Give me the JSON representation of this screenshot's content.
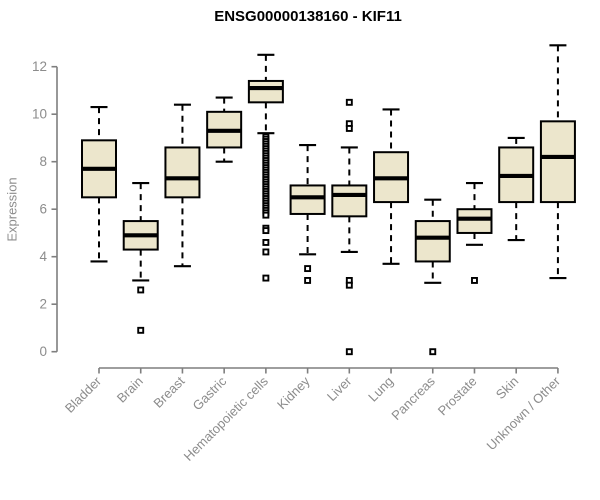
{
  "title": "ENSG00000138160 - KIF11",
  "chart_data": {
    "type": "boxplot",
    "title": "ENSG00000138160 - KIF11",
    "xlabel": "",
    "ylabel": "Expression",
    "ylim": [
      0,
      13
    ],
    "yticks": [
      0,
      2,
      4,
      6,
      8,
      10,
      12
    ],
    "grid": false,
    "legend": "none",
    "categories": [
      "Bladder",
      "Brain",
      "Breast",
      "Gastric",
      "Hematopoietic cells",
      "Kidney",
      "Liver",
      "Lung",
      "Pancreas",
      "Prostate",
      "Skin",
      "Unknown / Other"
    ],
    "series": [
      {
        "name": "Bladder",
        "whisker_low": 3.8,
        "q1": 6.5,
        "median": 7.7,
        "q3": 8.9,
        "whisker_high": 10.3,
        "outliers": []
      },
      {
        "name": "Brain",
        "whisker_low": 3.0,
        "q1": 4.3,
        "median": 4.9,
        "q3": 5.5,
        "whisker_high": 7.1,
        "outliers": [
          2.6,
          0.9
        ]
      },
      {
        "name": "Breast",
        "whisker_low": 3.6,
        "q1": 6.5,
        "median": 7.3,
        "q3": 8.6,
        "whisker_high": 10.4,
        "outliers": []
      },
      {
        "name": "Gastric",
        "whisker_low": 8.0,
        "q1": 8.6,
        "median": 9.3,
        "q3": 10.1,
        "whisker_high": 10.7,
        "outliers": []
      },
      {
        "name": "Hematopoietic cells",
        "whisker_low": 9.2,
        "q1": 10.5,
        "median": 11.1,
        "q3": 11.4,
        "whisker_high": 12.5,
        "outliers": [
          9.05,
          8.95,
          8.85,
          8.75,
          8.65,
          8.55,
          8.45,
          8.35,
          8.25,
          8.15,
          8.05,
          7.95,
          7.85,
          7.75,
          7.65,
          7.55,
          7.45,
          7.35,
          7.25,
          7.15,
          7.05,
          6.95,
          6.85,
          6.75,
          6.65,
          6.55,
          6.45,
          6.35,
          6.25,
          6.15,
          6.05,
          5.95,
          5.85,
          5.75,
          5.2,
          5.1,
          4.6,
          4.2,
          3.1
        ]
      },
      {
        "name": "Kidney",
        "whisker_low": 4.1,
        "q1": 5.8,
        "median": 6.5,
        "q3": 7.0,
        "whisker_high": 8.7,
        "outliers": [
          3.5,
          3.0
        ]
      },
      {
        "name": "Liver",
        "whisker_low": 4.2,
        "q1": 5.7,
        "median": 6.6,
        "q3": 7.0,
        "whisker_high": 8.6,
        "outliers": [
          10.5,
          9.6,
          9.4,
          3.0,
          2.8,
          0.0
        ]
      },
      {
        "name": "Lung",
        "whisker_low": 3.7,
        "q1": 6.3,
        "median": 7.3,
        "q3": 8.4,
        "whisker_high": 10.2,
        "outliers": []
      },
      {
        "name": "Pancreas",
        "whisker_low": 2.9,
        "q1": 3.8,
        "median": 4.8,
        "q3": 5.5,
        "whisker_high": 6.4,
        "outliers": [
          0.0
        ]
      },
      {
        "name": "Prostate",
        "whisker_low": 4.5,
        "q1": 5.0,
        "median": 5.6,
        "q3": 6.0,
        "whisker_high": 7.1,
        "outliers": [
          3.0
        ]
      },
      {
        "name": "Skin",
        "whisker_low": 4.7,
        "q1": 6.3,
        "median": 7.4,
        "q3": 8.6,
        "whisker_high": 9.0,
        "outliers": []
      },
      {
        "name": "Unknown / Other",
        "whisker_low": 3.1,
        "q1": 6.3,
        "median": 8.2,
        "q3": 9.7,
        "whisker_high": 12.9,
        "outliers": []
      }
    ],
    "colors": {
      "box_fill": "#ece6cc",
      "box_stroke": "#000000",
      "median": "#000000",
      "whisker": "#000000",
      "outlier_stroke": "#000000",
      "outlier_fill": "#ffffff",
      "axis": "#7f7f7f",
      "tick_label": "#8c8c8c",
      "title": "#000000",
      "background": "#ffffff"
    }
  }
}
